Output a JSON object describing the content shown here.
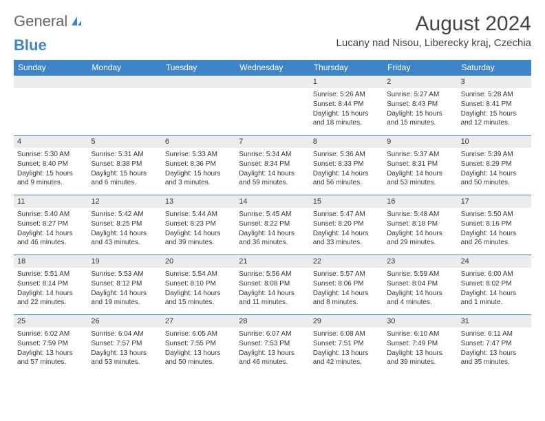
{
  "logo": {
    "text1": "General",
    "text2": "Blue"
  },
  "title": "August 2024",
  "location": "Lucany nad Nisou, Liberecky kraj, Czechia",
  "colors": {
    "header_bg": "#3d85c6",
    "header_text": "#ffffff",
    "daynum_bg": "#ececec",
    "week_border": "#3d85c6",
    "body_text": "#333333"
  },
  "weekdays": [
    "Sunday",
    "Monday",
    "Tuesday",
    "Wednesday",
    "Thursday",
    "Friday",
    "Saturday"
  ],
  "weeks": [
    [
      null,
      null,
      null,
      null,
      {
        "n": "1",
        "sunrise": "Sunrise: 5:26 AM",
        "sunset": "Sunset: 8:44 PM",
        "daylight": "Daylight: 15 hours and 18 minutes."
      },
      {
        "n": "2",
        "sunrise": "Sunrise: 5:27 AM",
        "sunset": "Sunset: 8:43 PM",
        "daylight": "Daylight: 15 hours and 15 minutes."
      },
      {
        "n": "3",
        "sunrise": "Sunrise: 5:28 AM",
        "sunset": "Sunset: 8:41 PM",
        "daylight": "Daylight: 15 hours and 12 minutes."
      }
    ],
    [
      {
        "n": "4",
        "sunrise": "Sunrise: 5:30 AM",
        "sunset": "Sunset: 8:40 PM",
        "daylight": "Daylight: 15 hours and 9 minutes."
      },
      {
        "n": "5",
        "sunrise": "Sunrise: 5:31 AM",
        "sunset": "Sunset: 8:38 PM",
        "daylight": "Daylight: 15 hours and 6 minutes."
      },
      {
        "n": "6",
        "sunrise": "Sunrise: 5:33 AM",
        "sunset": "Sunset: 8:36 PM",
        "daylight": "Daylight: 15 hours and 3 minutes."
      },
      {
        "n": "7",
        "sunrise": "Sunrise: 5:34 AM",
        "sunset": "Sunset: 8:34 PM",
        "daylight": "Daylight: 14 hours and 59 minutes."
      },
      {
        "n": "8",
        "sunrise": "Sunrise: 5:36 AM",
        "sunset": "Sunset: 8:33 PM",
        "daylight": "Daylight: 14 hours and 56 minutes."
      },
      {
        "n": "9",
        "sunrise": "Sunrise: 5:37 AM",
        "sunset": "Sunset: 8:31 PM",
        "daylight": "Daylight: 14 hours and 53 minutes."
      },
      {
        "n": "10",
        "sunrise": "Sunrise: 5:39 AM",
        "sunset": "Sunset: 8:29 PM",
        "daylight": "Daylight: 14 hours and 50 minutes."
      }
    ],
    [
      {
        "n": "11",
        "sunrise": "Sunrise: 5:40 AM",
        "sunset": "Sunset: 8:27 PM",
        "daylight": "Daylight: 14 hours and 46 minutes."
      },
      {
        "n": "12",
        "sunrise": "Sunrise: 5:42 AM",
        "sunset": "Sunset: 8:25 PM",
        "daylight": "Daylight: 14 hours and 43 minutes."
      },
      {
        "n": "13",
        "sunrise": "Sunrise: 5:44 AM",
        "sunset": "Sunset: 8:23 PM",
        "daylight": "Daylight: 14 hours and 39 minutes."
      },
      {
        "n": "14",
        "sunrise": "Sunrise: 5:45 AM",
        "sunset": "Sunset: 8:22 PM",
        "daylight": "Daylight: 14 hours and 36 minutes."
      },
      {
        "n": "15",
        "sunrise": "Sunrise: 5:47 AM",
        "sunset": "Sunset: 8:20 PM",
        "daylight": "Daylight: 14 hours and 33 minutes."
      },
      {
        "n": "16",
        "sunrise": "Sunrise: 5:48 AM",
        "sunset": "Sunset: 8:18 PM",
        "daylight": "Daylight: 14 hours and 29 minutes."
      },
      {
        "n": "17",
        "sunrise": "Sunrise: 5:50 AM",
        "sunset": "Sunset: 8:16 PM",
        "daylight": "Daylight: 14 hours and 26 minutes."
      }
    ],
    [
      {
        "n": "18",
        "sunrise": "Sunrise: 5:51 AM",
        "sunset": "Sunset: 8:14 PM",
        "daylight": "Daylight: 14 hours and 22 minutes."
      },
      {
        "n": "19",
        "sunrise": "Sunrise: 5:53 AM",
        "sunset": "Sunset: 8:12 PM",
        "daylight": "Daylight: 14 hours and 19 minutes."
      },
      {
        "n": "20",
        "sunrise": "Sunrise: 5:54 AM",
        "sunset": "Sunset: 8:10 PM",
        "daylight": "Daylight: 14 hours and 15 minutes."
      },
      {
        "n": "21",
        "sunrise": "Sunrise: 5:56 AM",
        "sunset": "Sunset: 8:08 PM",
        "daylight": "Daylight: 14 hours and 11 minutes."
      },
      {
        "n": "22",
        "sunrise": "Sunrise: 5:57 AM",
        "sunset": "Sunset: 8:06 PM",
        "daylight": "Daylight: 14 hours and 8 minutes."
      },
      {
        "n": "23",
        "sunrise": "Sunrise: 5:59 AM",
        "sunset": "Sunset: 8:04 PM",
        "daylight": "Daylight: 14 hours and 4 minutes."
      },
      {
        "n": "24",
        "sunrise": "Sunrise: 6:00 AM",
        "sunset": "Sunset: 8:02 PM",
        "daylight": "Daylight: 14 hours and 1 minute."
      }
    ],
    [
      {
        "n": "25",
        "sunrise": "Sunrise: 6:02 AM",
        "sunset": "Sunset: 7:59 PM",
        "daylight": "Daylight: 13 hours and 57 minutes."
      },
      {
        "n": "26",
        "sunrise": "Sunrise: 6:04 AM",
        "sunset": "Sunset: 7:57 PM",
        "daylight": "Daylight: 13 hours and 53 minutes."
      },
      {
        "n": "27",
        "sunrise": "Sunrise: 6:05 AM",
        "sunset": "Sunset: 7:55 PM",
        "daylight": "Daylight: 13 hours and 50 minutes."
      },
      {
        "n": "28",
        "sunrise": "Sunrise: 6:07 AM",
        "sunset": "Sunset: 7:53 PM",
        "daylight": "Daylight: 13 hours and 46 minutes."
      },
      {
        "n": "29",
        "sunrise": "Sunrise: 6:08 AM",
        "sunset": "Sunset: 7:51 PM",
        "daylight": "Daylight: 13 hours and 42 minutes."
      },
      {
        "n": "30",
        "sunrise": "Sunrise: 6:10 AM",
        "sunset": "Sunset: 7:49 PM",
        "daylight": "Daylight: 13 hours and 39 minutes."
      },
      {
        "n": "31",
        "sunrise": "Sunrise: 6:11 AM",
        "sunset": "Sunset: 7:47 PM",
        "daylight": "Daylight: 13 hours and 35 minutes."
      }
    ]
  ]
}
